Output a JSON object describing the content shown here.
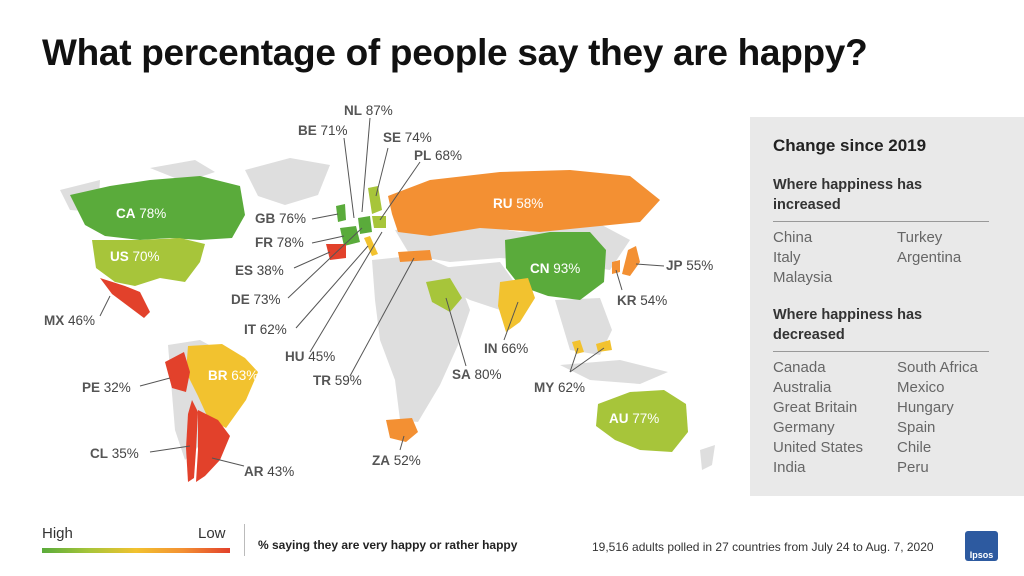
{
  "title": "What percentage of people say they are happy?",
  "colors": {
    "high": "#5aab3b",
    "mid_high": "#a7c53a",
    "mid": "#f2c22f",
    "mid_low": "#f39033",
    "low": "#e2412b",
    "no_data": "#dedede",
    "panel_bg": "#e9e9e9"
  },
  "countries": [
    {
      "code": "NL",
      "value": "87%"
    },
    {
      "code": "BE",
      "value": "71%"
    },
    {
      "code": "SE",
      "value": "74%"
    },
    {
      "code": "PL",
      "value": "68%"
    },
    {
      "code": "CA",
      "value": "78%"
    },
    {
      "code": "RU",
      "value": "58%"
    },
    {
      "code": "GB",
      "value": "76%"
    },
    {
      "code": "FR",
      "value": "78%"
    },
    {
      "code": "US",
      "value": "70%"
    },
    {
      "code": "ES",
      "value": "38%"
    },
    {
      "code": "CN",
      "value": "93%"
    },
    {
      "code": "JP",
      "value": "55%"
    },
    {
      "code": "DE",
      "value": "73%"
    },
    {
      "code": "KR",
      "value": "54%"
    },
    {
      "code": "MX",
      "value": "46%"
    },
    {
      "code": "IT",
      "value": "62%"
    },
    {
      "code": "IN",
      "value": "66%"
    },
    {
      "code": "HU",
      "value": "45%"
    },
    {
      "code": "BR",
      "value": "63%"
    },
    {
      "code": "PE",
      "value": "32%"
    },
    {
      "code": "TR",
      "value": "59%"
    },
    {
      "code": "SA",
      "value": "80%"
    },
    {
      "code": "MY",
      "value": "62%"
    },
    {
      "code": "AU",
      "value": "77%"
    },
    {
      "code": "CL",
      "value": "35%"
    },
    {
      "code": "ZA",
      "value": "52%"
    },
    {
      "code": "AR",
      "value": "43%"
    }
  ],
  "panel": {
    "heading": "Change since 2019",
    "increased": {
      "heading": "Where happiness has increased",
      "col1": [
        "China",
        "Italy",
        "Malaysia"
      ],
      "col2": [
        "Turkey",
        "Argentina"
      ]
    },
    "decreased": {
      "heading": "Where happiness has decreased",
      "col1": [
        "Canada",
        "Australia",
        "Great Britain",
        "Germany",
        "United States",
        "India"
      ],
      "col2": [
        "South Africa",
        "Mexico",
        "Hungary",
        "Spain",
        "Chile",
        "Peru"
      ]
    }
  },
  "legend": {
    "high": "High",
    "low": "Low",
    "caption": "% saying they are very happy or rather happy"
  },
  "footnote": "19,516 adults polled in 27 countries from July 24 to Aug. 7, 2020",
  "logo": {
    "text": "Ipsos"
  }
}
